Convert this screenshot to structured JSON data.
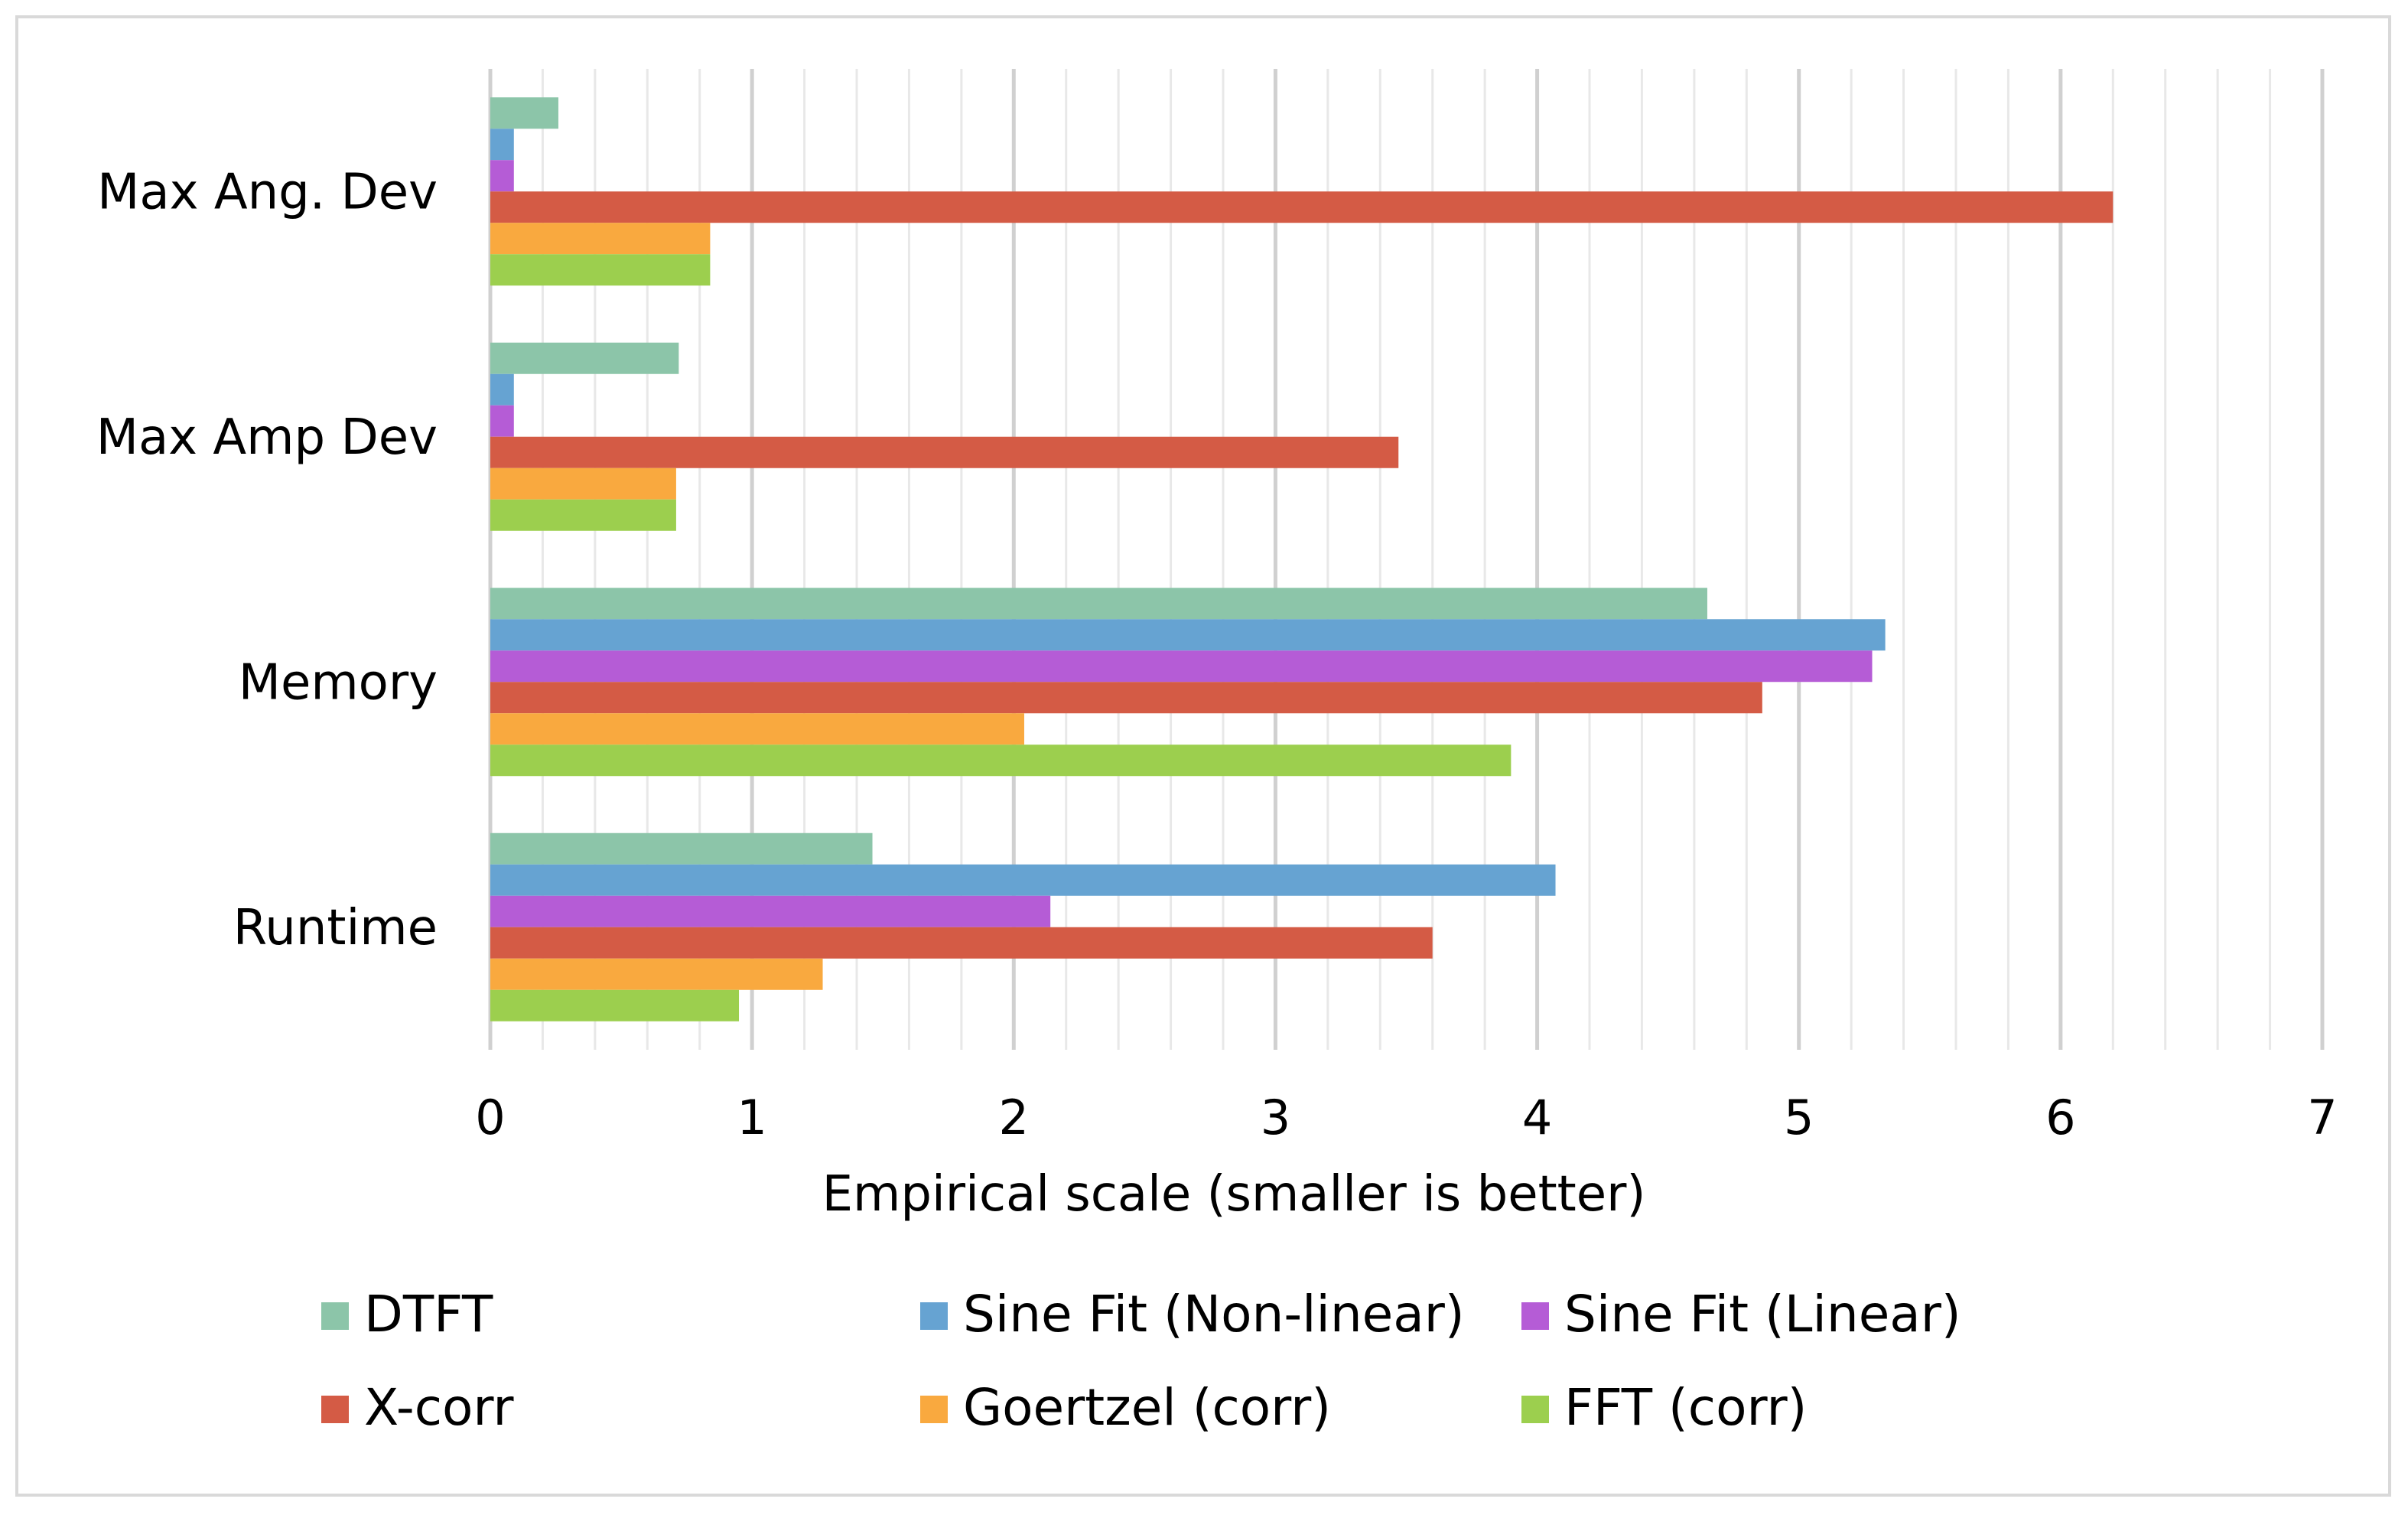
{
  "chart_data": {
    "type": "bar",
    "orientation": "horizontal",
    "title": "",
    "xlabel": "Empirical scale (smaller is better)",
    "ylabel": "",
    "xlim": [
      0,
      7
    ],
    "major_ticks": [
      0,
      1,
      2,
      3,
      4,
      5,
      6,
      7
    ],
    "minor_step": 0.2,
    "grid": true,
    "legend_position": "bottom",
    "categories": [
      "Max Ang. Dev",
      "Max Amp Dev",
      "Memory",
      "Runtime"
    ],
    "series": [
      {
        "name": "DTFT",
        "color": "#8cc5a9",
        "values": [
          0.26,
          0.72,
          4.65,
          1.46
        ]
      },
      {
        "name": "Sine Fit (Non-linear)",
        "color": "#66a3d2",
        "values": [
          0.09,
          0.09,
          5.33,
          4.07
        ]
      },
      {
        "name": "Sine Fit (Linear)",
        "color": "#b55cd6",
        "values": [
          0.09,
          0.09,
          5.28,
          2.14
        ]
      },
      {
        "name": "X-corr",
        "color": "#d45b45",
        "values": [
          6.2,
          3.47,
          4.86,
          3.6
        ]
      },
      {
        "name": "Goertzel (corr)",
        "color": "#f9a93f",
        "values": [
          0.84,
          0.71,
          2.04,
          1.27
        ]
      },
      {
        "name": "FFT (corr)",
        "color": "#9ccf4e",
        "values": [
          0.84,
          0.71,
          3.9,
          0.95
        ]
      }
    ]
  }
}
